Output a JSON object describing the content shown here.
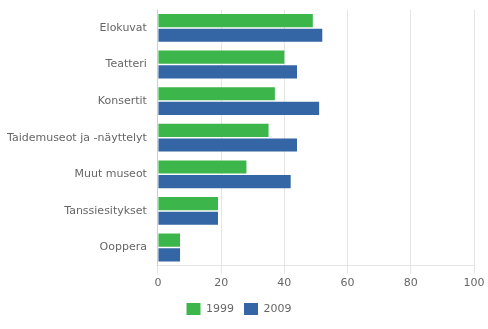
{
  "chart_data": {
    "type": "bar",
    "orientation": "horizontal",
    "categories": [
      "Elokuvat",
      "Teatteri",
      "Konsertit",
      "Taidemuseot ja -näyttelyt",
      "Muut museot",
      "Tanssiesitykset",
      "Ooppera"
    ],
    "series": [
      {
        "name": "1999",
        "color": "#3cb54a",
        "values": [
          49,
          40,
          37,
          35,
          28,
          19,
          7
        ]
      },
      {
        "name": "2009",
        "color": "#3465a4",
        "values": [
          52,
          44,
          51,
          44,
          42,
          19,
          7
        ]
      }
    ],
    "xlim": [
      0,
      100
    ],
    "xticks": [
      0,
      20,
      40,
      60,
      80,
      100
    ],
    "grid": true,
    "legend": "bottom"
  }
}
